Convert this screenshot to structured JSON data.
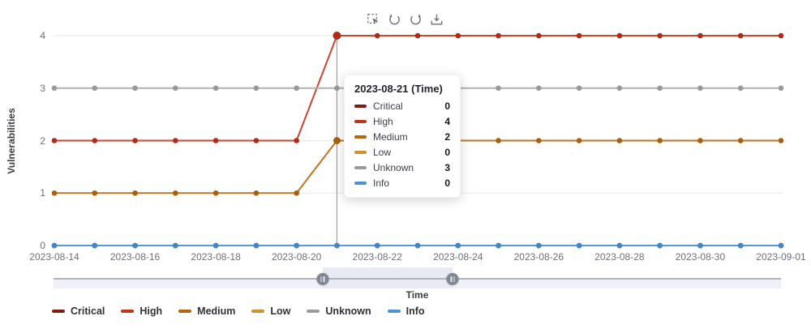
{
  "toolbar": {
    "icons": [
      {
        "name": "area-select-icon"
      },
      {
        "name": "restore-icon"
      },
      {
        "name": "refresh-icon"
      },
      {
        "name": "download-icon"
      }
    ]
  },
  "tooltip": {
    "title": "2023-08-21 (Time)",
    "rows": [
      {
        "label": "Critical",
        "value": "0",
        "color": "#7c1d12"
      },
      {
        "label": "High",
        "value": "4",
        "color": "#bf3520"
      },
      {
        "label": "Medium",
        "value": "2",
        "color": "#b0670f"
      },
      {
        "label": "Low",
        "value": "0",
        "color": "#cd9232"
      },
      {
        "label": "Unknown",
        "value": "3",
        "color": "#9b9b9b"
      },
      {
        "label": "Info",
        "value": "0",
        "color": "#4b92da"
      }
    ]
  },
  "chart_data": {
    "type": "line",
    "title": "",
    "xlabel": "Time",
    "ylabel": "Vulnerabilities",
    "ylim": [
      0,
      4
    ],
    "yticks": [
      0,
      1,
      2,
      3,
      4
    ],
    "x_tick_every": 2,
    "grid": true,
    "legend_position": "bottom",
    "categories": [
      "2023-08-14",
      "2023-08-15",
      "2023-08-16",
      "2023-08-17",
      "2023-08-18",
      "2023-08-19",
      "2023-08-20",
      "2023-08-21",
      "2023-08-22",
      "2023-08-23",
      "2023-08-24",
      "2023-08-25",
      "2023-08-26",
      "2023-08-27",
      "2023-08-28",
      "2023-08-29",
      "2023-08-30",
      "2023-08-31",
      "2023-09-01"
    ],
    "series": [
      {
        "name": "Critical",
        "color": "#7c1d12",
        "point_color": "#7c1d12",
        "values": [
          0,
          0,
          0,
          0,
          0,
          0,
          0,
          0,
          0,
          0,
          0,
          0,
          0,
          0,
          0,
          0,
          0,
          0,
          0
        ]
      },
      {
        "name": "High",
        "color": "#cb4632",
        "point_color": "#b22a14",
        "values": [
          2,
          2,
          2,
          2,
          2,
          2,
          2,
          4,
          4,
          4,
          4,
          4,
          4,
          4,
          4,
          4,
          4,
          4,
          4
        ]
      },
      {
        "name": "Medium",
        "color": "#bd7526",
        "point_color": "#a95f08",
        "values": [
          1,
          1,
          1,
          1,
          1,
          1,
          1,
          2,
          2,
          2,
          2,
          2,
          2,
          2,
          2,
          2,
          2,
          2,
          2
        ]
      },
      {
        "name": "Low",
        "color": "#d59b3e",
        "point_color": "#cd8f2e",
        "values": [
          0,
          0,
          0,
          0,
          0,
          0,
          0,
          0,
          0,
          0,
          0,
          0,
          0,
          0,
          0,
          0,
          0,
          0,
          0
        ]
      },
      {
        "name": "Unknown",
        "color": "#b2b2b2",
        "point_color": "#999999",
        "values": [
          3,
          3,
          3,
          3,
          3,
          3,
          3,
          3,
          3,
          3,
          3,
          3,
          3,
          3,
          3,
          3,
          3,
          3,
          3
        ]
      },
      {
        "name": "Info",
        "color": "#509add",
        "point_color": "#3f86d0",
        "values": [
          0,
          0,
          0,
          0,
          0,
          0,
          0,
          0,
          0,
          0,
          0,
          0,
          0,
          0,
          0,
          0,
          0,
          0,
          0
        ]
      }
    ],
    "axis_pointer": {
      "category": "2023-08-21",
      "index": 7
    },
    "emphasized_index": 7
  },
  "legend": {
    "items": [
      {
        "label": "Critical",
        "color": "#7c1d12"
      },
      {
        "label": "High",
        "color": "#bf3520"
      },
      {
        "label": "Medium",
        "color": "#b0670f"
      },
      {
        "label": "Low",
        "color": "#cd9232"
      },
      {
        "label": "Unknown",
        "color": "#9b9b9b"
      },
      {
        "label": "Info",
        "color": "#4b92da"
      }
    ]
  },
  "slider": {
    "label": "Time",
    "start_percent": 37.0,
    "end_percent": 54.9
  },
  "colors": {
    "grid_line": "#e7eaef",
    "axis_line": "#cdd3da",
    "pointer_line": "#9aa0a8",
    "axis_label": "#6e7079"
  }
}
